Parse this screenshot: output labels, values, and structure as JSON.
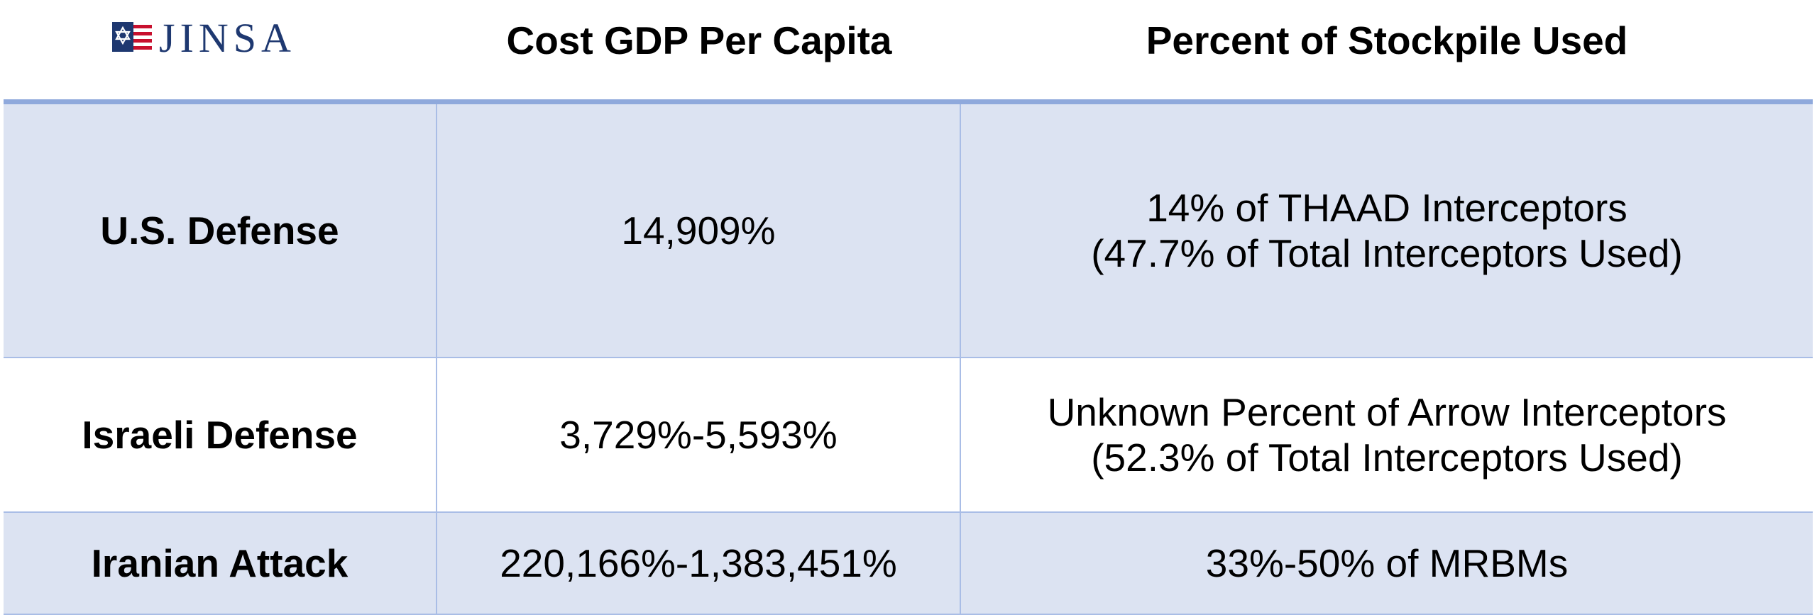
{
  "logo": {
    "text": "JINSA",
    "icon": "flag-star-of-david-icon",
    "colors": {
      "navy": "#1e3870",
      "red": "#c8102e"
    }
  },
  "headers": {
    "cost": "Cost GDP Per Capita",
    "stockpile": "Percent of Stockpile Used"
  },
  "rows": [
    {
      "label": "U.S. Defense",
      "cost": "14,909%",
      "stockpile_line1": "14% of THAAD Interceptors",
      "stockpile_line2": "(47.7% of Total Interceptors Used)"
    },
    {
      "label": "Israeli Defense",
      "cost": "3,729%-5,593%",
      "stockpile_line1": "Unknown Percent of Arrow Interceptors",
      "stockpile_line2": "(52.3% of Total Interceptors Used)"
    },
    {
      "label": "Iranian Attack",
      "cost": "220,166%-1,383,451%",
      "stockpile_line1": "33%-50% of MRBMs",
      "stockpile_line2": ""
    }
  ],
  "colors": {
    "shaded_row": "#dce3f2",
    "rule": "#8fa9dc",
    "grid": "#a9bde6"
  }
}
